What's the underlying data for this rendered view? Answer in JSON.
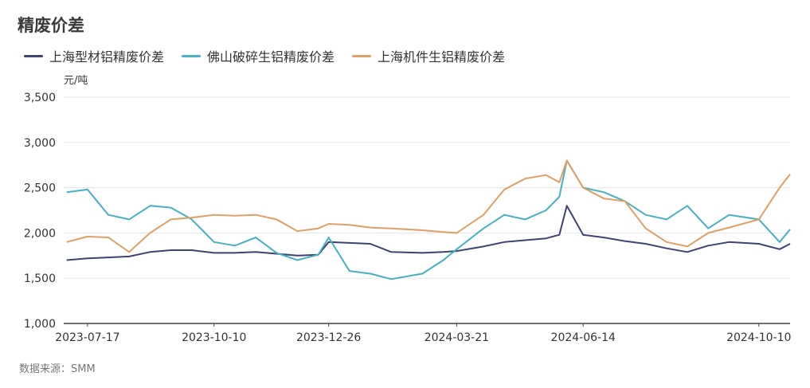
{
  "title": "精废价差",
  "unit": "元/吨",
  "source": "数据来源：SMM",
  "chart_data": {
    "type": "line",
    "title": "精废价差",
    "ylabel": "元/吨",
    "ylim": [
      1000,
      3500
    ],
    "yticks": [
      "1,000",
      "1,500",
      "2,000",
      "2,500",
      "3,000",
      "3,500"
    ],
    "x_tick_labels": [
      "2023-07-17",
      "2023-10-10",
      "2023-12-26",
      "2024-03-21",
      "2024-06-14",
      "2024-10-10"
    ],
    "grid": true,
    "legend": "top-left",
    "x_dates": [
      "2023-07-03",
      "2023-07-17",
      "2023-07-31",
      "2023-08-14",
      "2023-08-28",
      "2023-09-11",
      "2023-09-25",
      "2023-10-10",
      "2023-10-24",
      "2023-11-07",
      "2023-11-21",
      "2023-12-05",
      "2023-12-19",
      "2023-12-26",
      "2024-01-09",
      "2024-01-23",
      "2024-02-06",
      "2024-02-27",
      "2024-03-12",
      "2024-03-21",
      "2024-04-08",
      "2024-04-22",
      "2024-05-06",
      "2024-05-20",
      "2024-05-29",
      "2024-06-03",
      "2024-06-14",
      "2024-06-28",
      "2024-07-12",
      "2024-07-26",
      "2024-08-09",
      "2024-08-23",
      "2024-09-06",
      "2024-09-20",
      "2024-10-10",
      "2024-10-24",
      "2024-10-31"
    ],
    "series": [
      {
        "name": "上海型材铝精废价差",
        "color": "#3d4372",
        "values": [
          1700,
          1720,
          1730,
          1740,
          1790,
          1810,
          1810,
          1780,
          1780,
          1790,
          1770,
          1750,
          1760,
          1900,
          1890,
          1880,
          1790,
          1780,
          1790,
          1800,
          1850,
          1900,
          1920,
          1940,
          1980,
          2300,
          1980,
          1950,
          1910,
          1880,
          1830,
          1790,
          1860,
          1900,
          1880,
          1820,
          1880
        ]
      },
      {
        "name": "佛山破碎生铝精废价差",
        "color": "#46b1c1",
        "values": [
          2450,
          2480,
          2200,
          2150,
          2300,
          2280,
          2150,
          1900,
          1860,
          1950,
          1780,
          1700,
          1760,
          1950,
          1580,
          1550,
          1490,
          1550,
          1700,
          1820,
          2050,
          2200,
          2150,
          2250,
          2400,
          2800,
          2500,
          2450,
          2350,
          2200,
          2150,
          2300,
          2050,
          2200,
          2150,
          1900,
          2040
        ]
      },
      {
        "name": "上海机件生铝精废价差",
        "color": "#e0a063",
        "values": [
          1900,
          1960,
          1950,
          1790,
          2000,
          2150,
          2170,
          2200,
          2190,
          2200,
          2150,
          2020,
          2050,
          2100,
          2090,
          2060,
          2050,
          2030,
          2010,
          2000,
          2200,
          2480,
          2600,
          2640,
          2560,
          2800,
          2500,
          2380,
          2350,
          2050,
          1900,
          1850,
          2000,
          2060,
          2150,
          2500,
          2650
        ]
      }
    ]
  }
}
